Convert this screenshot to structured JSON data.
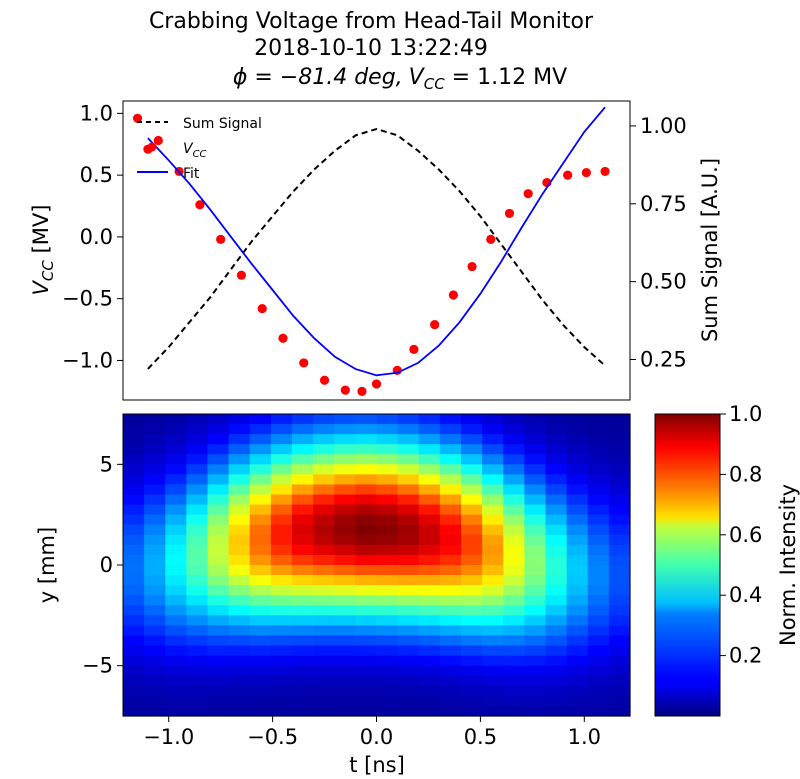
{
  "title": {
    "line1": "Crabbing Voltage from Head-Tail Monitor",
    "line2": "2018-10-10 13:22:49",
    "line3_phi": "ϕ = −81.4 deg,",
    "line3_vcc": "V",
    "line3_vcc_sub": "CC",
    "line3_vcc_val": " = 1.12 MV"
  },
  "chart_data": [
    {
      "type": "line",
      "xlim": [
        -1.22,
        1.22
      ],
      "ylim": [
        -1.32,
        1.1
      ],
      "y2lim": [
        0.12,
        1.08
      ],
      "ylabel": "V_CC [MV]",
      "ylabel_main": "V",
      "ylabel_sub": "CC",
      "ylabel_unit": " [MV]",
      "y2label": "Sum Signal [A.U.]",
      "yticks": [
        1.0,
        0.5,
        0.0,
        -0.5,
        -1.0
      ],
      "ytick_labels": [
        "1.0",
        "0.5",
        "0.0",
        "−0.5",
        "−1.0"
      ],
      "y2ticks": [
        1.0,
        0.75,
        0.5,
        0.25
      ],
      "y2tick_labels": [
        "1.00",
        "0.75",
        "0.50",
        "0.25"
      ],
      "legend": {
        "position": "upper-left",
        "entries": [
          "Sum Signal",
          "V_CC",
          "Fit"
        ],
        "label_sum": "Sum Signal",
        "label_vcc_main": "V",
        "label_vcc_sub": "CC",
        "label_fit": "Fit"
      },
      "series": [
        {
          "name": "Sum Signal",
          "axis": "right",
          "style": "dashed",
          "color": "#000000",
          "x": [
            -1.1,
            -1.0,
            -0.9,
            -0.8,
            -0.7,
            -0.6,
            -0.5,
            -0.4,
            -0.3,
            -0.2,
            -0.1,
            0.0,
            0.1,
            0.2,
            0.3,
            0.4,
            0.5,
            0.6,
            0.7,
            0.8,
            0.9,
            1.0,
            1.1
          ],
          "y": [
            0.22,
            0.29,
            0.37,
            0.45,
            0.54,
            0.63,
            0.71,
            0.79,
            0.86,
            0.92,
            0.97,
            0.99,
            0.97,
            0.92,
            0.86,
            0.79,
            0.71,
            0.62,
            0.53,
            0.44,
            0.36,
            0.29,
            0.23
          ]
        },
        {
          "name": "V_CC",
          "axis": "left",
          "style": "markers",
          "color": "#ff0000",
          "x": [
            -1.15,
            -1.1,
            -1.05,
            -0.95,
            -0.85,
            -0.75,
            -0.65,
            -0.55,
            -0.45,
            -0.35,
            -0.25,
            -0.15,
            -0.07,
            0.0,
            0.1,
            0.18,
            0.28,
            0.37,
            0.46,
            0.55,
            0.64,
            0.73,
            0.82,
            0.92,
            1.01,
            1.1
          ],
          "y": [
            0.96,
            0.71,
            0.78,
            0.53,
            0.26,
            -0.02,
            -0.31,
            -0.58,
            -0.82,
            -1.02,
            -1.16,
            -1.24,
            -1.25,
            -1.19,
            -1.08,
            -0.91,
            -0.71,
            -0.47,
            -0.24,
            -0.02,
            0.19,
            0.35,
            0.44,
            0.5,
            0.52,
            0.53
          ]
        },
        {
          "name": "Fit",
          "axis": "left",
          "style": "line",
          "color": "#0000ff",
          "x": [
            -1.1,
            -1.0,
            -0.9,
            -0.8,
            -0.7,
            -0.6,
            -0.5,
            -0.4,
            -0.3,
            -0.2,
            -0.1,
            0.0,
            0.1,
            0.2,
            0.3,
            0.4,
            0.5,
            0.6,
            0.7,
            0.8,
            0.9,
            1.0,
            1.1
          ],
          "y": [
            0.8,
            0.62,
            0.43,
            0.22,
            0.0,
            -0.22,
            -0.43,
            -0.64,
            -0.82,
            -0.97,
            -1.07,
            -1.12,
            -1.1,
            -1.02,
            -0.88,
            -0.69,
            -0.46,
            -0.2,
            0.08,
            0.35,
            0.6,
            0.85,
            1.05
          ]
        }
      ]
    },
    {
      "type": "heatmap",
      "xlabel": "t [ns]",
      "ylabel": "y [mm]",
      "xlim": [
        -1.22,
        1.22
      ],
      "ylim": [
        -7.5,
        7.5
      ],
      "xticks": [
        -1.0,
        -0.5,
        0.0,
        0.5,
        1.0
      ],
      "xtick_labels": [
        "−1.0",
        "−0.5",
        "0.0",
        "0.5",
        "1.0"
      ],
      "yticks": [
        5,
        0,
        -5
      ],
      "ytick_labels": [
        "5",
        "0",
        "−5"
      ],
      "colormap": "jet",
      "cols": 24,
      "rows": 30,
      "peak_intensity_by_t": [
        0.22,
        0.28,
        0.36,
        0.45,
        0.56,
        0.67,
        0.77,
        0.85,
        0.91,
        0.95,
        0.98,
        1.0,
        0.99,
        0.97,
        0.93,
        0.88,
        0.81,
        0.72,
        0.61,
        0.5,
        0.4,
        0.31,
        0.24,
        0.19
      ],
      "centroid_y_by_t": [
        -0.2,
        0.0,
        0.2,
        0.5,
        0.8,
        1.1,
        1.3,
        1.5,
        1.65,
        1.75,
        1.8,
        1.8,
        1.75,
        1.65,
        1.5,
        1.3,
        1.05,
        0.75,
        0.45,
        0.15,
        -0.1,
        -0.3,
        -0.45,
        -0.55
      ],
      "width_y": 3.0,
      "colorbar": {
        "label": "Norm. Intensity",
        "range": [
          0.0,
          1.0
        ],
        "ticks": [
          1.0,
          0.8,
          0.6,
          0.4,
          0.2
        ],
        "tick_labels": [
          "1.0",
          "0.8",
          "0.6",
          "0.4",
          "0.2"
        ]
      }
    }
  ]
}
